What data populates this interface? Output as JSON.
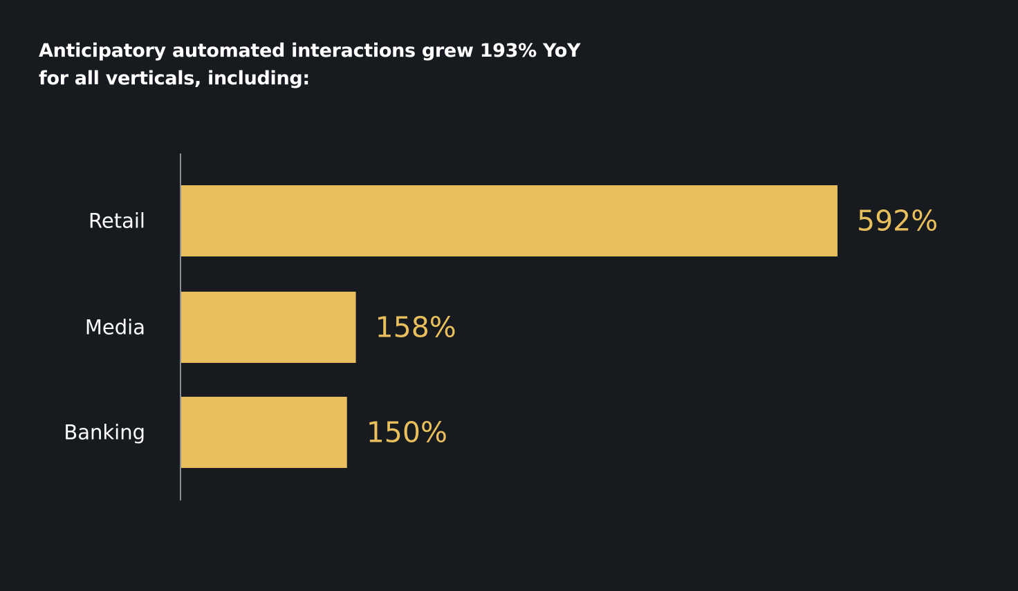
{
  "chart_data": {
    "type": "bar",
    "orientation": "horizontal",
    "title_lines": [
      "Anticipatory automated interactions grew 193% YoY",
      "for all verticals, including:"
    ],
    "categories": [
      "Retail",
      "Media",
      "Banking"
    ],
    "values": [
      592,
      158,
      150
    ],
    "value_labels": [
      "592%",
      "158%",
      "150%"
    ],
    "unit": "%",
    "xlim": [
      0,
      592
    ],
    "grid": false,
    "legend": "none",
    "colors": {
      "background": "#171a1f",
      "bar": "#e8bf5c",
      "value_label": "#e8bf5c",
      "category_label": "#ffffff",
      "title": "#ffffff",
      "axis": "#8a8d92"
    }
  }
}
